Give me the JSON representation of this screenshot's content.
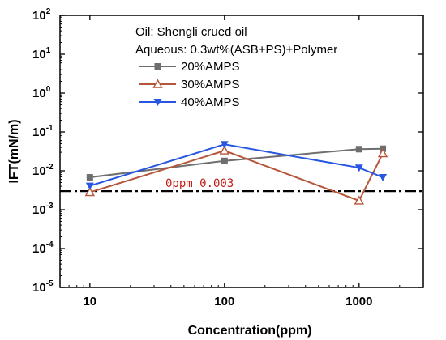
{
  "chart_data": {
    "type": "line",
    "title": "",
    "xlabel": "Concentration(ppm)",
    "ylabel": "IFT(mN/m)",
    "x_scale": "log",
    "y_scale": "log",
    "xlim": [
      6,
      3000
    ],
    "ylim": [
      1e-05,
      100
    ],
    "x_ticks": [
      10,
      100,
      1000
    ],
    "x_tick_labels": [
      "10",
      "100",
      "1000"
    ],
    "y_ticks": [
      1e-05,
      0.0001,
      0.001,
      0.01,
      0.1,
      1,
      10,
      100
    ],
    "y_tick_labels": [
      {
        "base": "10",
        "exp": "-5"
      },
      {
        "base": "10",
        "exp": "-4"
      },
      {
        "base": "10",
        "exp": "-3"
      },
      {
        "base": "10",
        "exp": "-2"
      },
      {
        "base": "10",
        "exp": "-1"
      },
      {
        "base": "10",
        "exp": "0"
      },
      {
        "base": "10",
        "exp": "1"
      },
      {
        "base": "10",
        "exp": "2"
      }
    ],
    "grid": false,
    "legend_position": "top-center",
    "annotations": [
      "Oil: Shengli crued oil",
      "Aqueous: 0.3wt%(ASB+PS)+Polymer"
    ],
    "series": [
      {
        "name": "20%AMPS",
        "color": "#6e6e6e",
        "marker": "square",
        "x": [
          10,
          100,
          1000,
          1500
        ],
        "y": [
          0.0068,
          0.018,
          0.036,
          0.037
        ]
      },
      {
        "name": "30%AMPS",
        "color": "#b5553a",
        "marker": "triangle-up-open",
        "x": [
          10,
          100,
          1000,
          1500
        ],
        "y": [
          0.0028,
          0.033,
          0.0017,
          0.028
        ]
      },
      {
        "name": "40%AMPS",
        "color": "#2956e0",
        "marker": "triangle-down",
        "x": [
          10,
          100,
          1000,
          1500
        ],
        "y": [
          0.0041,
          0.048,
          0.012,
          0.0068
        ]
      }
    ],
    "reference_line": {
      "y": 0.003,
      "label": "0ppm 0.003",
      "color": "#000000",
      "label_color": "#c0201a"
    }
  }
}
